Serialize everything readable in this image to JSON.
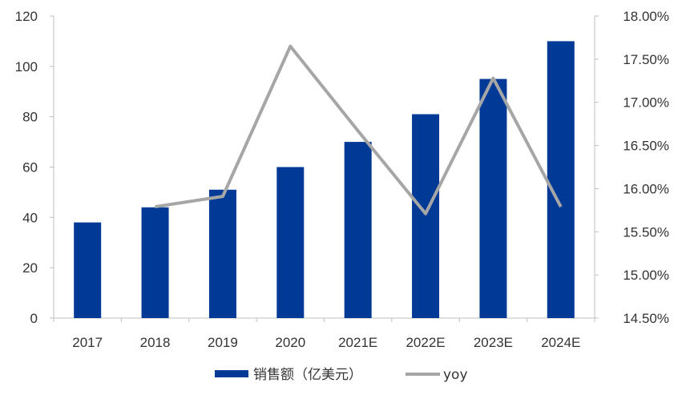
{
  "chart_data": {
    "type": "bar",
    "categories": [
      "2017",
      "2018",
      "2019",
      "2020",
      "2021E",
      "2022E",
      "2023E",
      "2024E"
    ],
    "series": [
      {
        "name": "销售额（亿美元）",
        "type": "bar",
        "axis": "left",
        "values": [
          38,
          44,
          51,
          60,
          70,
          81,
          95,
          110
        ]
      },
      {
        "name": "yoy",
        "type": "line",
        "axis": "right",
        "values": [
          null,
          15.79,
          15.91,
          17.65,
          16.67,
          15.71,
          17.28,
          15.79
        ]
      }
    ],
    "y_left": {
      "min": 0,
      "max": 120,
      "ticks": [
        0,
        20,
        40,
        60,
        80,
        100,
        120
      ],
      "tick_labels": [
        "0",
        "20",
        "40",
        "60",
        "80",
        "100",
        "120"
      ]
    },
    "y_right": {
      "min": 14.5,
      "max": 18.0,
      "ticks": [
        14.5,
        15.0,
        15.5,
        16.0,
        16.5,
        17.0,
        17.5,
        18.0
      ],
      "tick_labels": [
        "14.50%",
        "15.00%",
        "15.50%",
        "16.00%",
        "16.50%",
        "17.00%",
        "17.50%",
        "18.00%"
      ]
    },
    "grid": false,
    "legend_position": "bottom",
    "colors": {
      "bar": "#003a96",
      "line": "#a6a6a6",
      "axis": "#bfbfbf"
    }
  }
}
